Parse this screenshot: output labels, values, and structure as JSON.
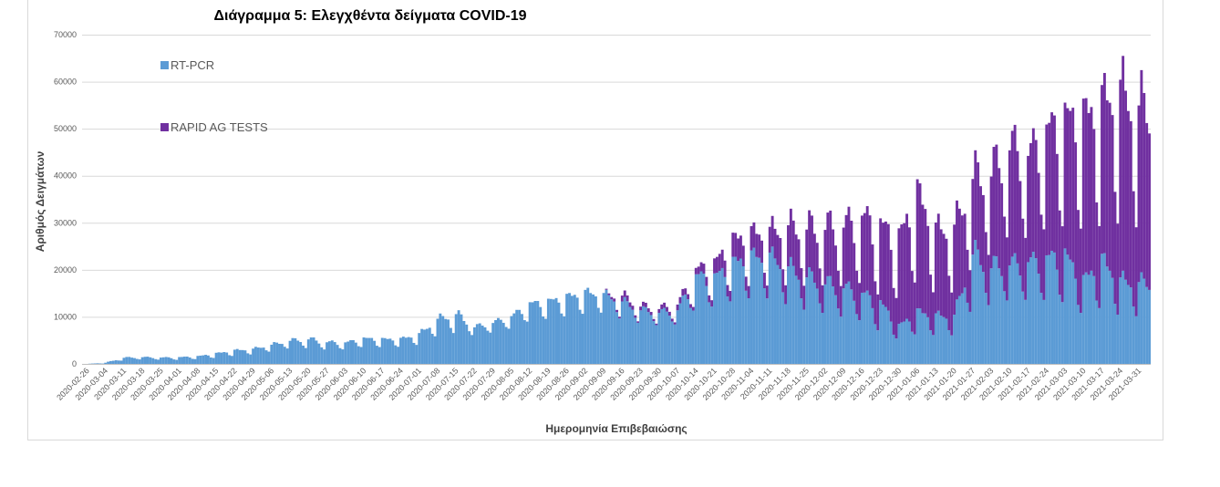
{
  "chart_data": {
    "type": "bar",
    "stacked": true,
    "title": "Διάγραμμα 5: Ελεγχθέντα δείγματα COVID-19",
    "xlabel": "Ημερομηνία Επιβεβαιώσης",
    "ylabel": "Αριθμός Δειγμάτων",
    "ylim": [
      0,
      70000
    ],
    "yticks": [
      0,
      10000,
      20000,
      30000,
      40000,
      50000,
      60000,
      70000
    ],
    "legend_position": "top-left, inside plot",
    "grid": true,
    "x_tick_labels": [
      "2020-02-26",
      "2020-03-04",
      "2020-03-11",
      "2020-03-18",
      "2020-03-25",
      "2020-04-01",
      "2020-04-08",
      "2020-04-15",
      "2020-04-22",
      "2020-04-29",
      "2020-05-06",
      "2020-05-13",
      "2020-05-20",
      "2020-05-27",
      "2020-06-03",
      "2020-06-10",
      "2020-06-17",
      "2020-06-24",
      "2020-07-01",
      "2020-07-08",
      "2020-07-15",
      "2020-07-22",
      "2020-07-29",
      "2020-08-05",
      "2020-08-12",
      "2020-08-19",
      "2020-08-26",
      "2020-09-02",
      "2020-09-09",
      "2020-09-16",
      "2020-09-23",
      "2020-09-30",
      "2020-10-07",
      "2020-10-14",
      "2020-10-21",
      "2020-10-28",
      "2020-11-04",
      "2020-11-11",
      "2020-11-18",
      "2020-11-25",
      "2020-12-02",
      "2020-12-09",
      "2020-12-16",
      "2020-12-23",
      "2020-12-30",
      "2021-01-06",
      "2021-01-13",
      "2021-01-20",
      "2021-01-27",
      "2021-02-03",
      "2021-02-10",
      "2021-02-17",
      "2021-02-24",
      "2021-03-03",
      "2021-03-10",
      "2021-03-17",
      "2021-03-24",
      "2021-03-31"
    ],
    "weekly_points": [
      "2020-02-26",
      "2020-03-04",
      "2020-03-11",
      "2020-03-18",
      "2020-03-25",
      "2020-04-01",
      "2020-04-08",
      "2020-04-15",
      "2020-04-22",
      "2020-04-29",
      "2020-05-06",
      "2020-05-13",
      "2020-05-20",
      "2020-05-27",
      "2020-06-03",
      "2020-06-10",
      "2020-06-17",
      "2020-06-24",
      "2020-07-01",
      "2020-07-08",
      "2020-07-15",
      "2020-07-22",
      "2020-07-29",
      "2020-08-05",
      "2020-08-12",
      "2020-08-19",
      "2020-08-26",
      "2020-09-02",
      "2020-09-09",
      "2020-09-16",
      "2020-09-23",
      "2020-09-30",
      "2020-10-07",
      "2020-10-14",
      "2020-10-21",
      "2020-10-28",
      "2020-11-04",
      "2020-11-11",
      "2020-11-18",
      "2020-11-25",
      "2020-12-02",
      "2020-12-09",
      "2020-12-16",
      "2020-12-23",
      "2020-12-30",
      "2021-01-06",
      "2021-01-13",
      "2021-01-20",
      "2021-01-27",
      "2021-02-03",
      "2021-02-10",
      "2021-02-17",
      "2021-02-24",
      "2021-03-03",
      "2021-03-10",
      "2021-03-17",
      "2021-03-24",
      "2021-03-31"
    ],
    "series": [
      {
        "name": "RT-PCR",
        "color": "#5b9bd5",
        "weekly_peak": [
          0,
          300,
          1500,
          1600,
          1500,
          1600,
          1800,
          2500,
          3200,
          3500,
          4500,
          5500,
          6000,
          5200,
          5000,
          6000,
          5800,
          5800,
          7000,
          10500,
          12000,
          8500,
          9500,
          11000,
          14000,
          14500,
          15500,
          16500,
          16000,
          14500,
          12500,
          12000,
          12500,
          21000,
          20500,
          24000,
          25500,
          25500,
          23000,
          21000,
          19500,
          18500,
          17000,
          15000,
          9000,
          12500,
          11500,
          11500,
          27000,
          23500,
          24000,
          24500,
          25500,
          26500,
          20000,
          25000,
          20000,
          19500
        ],
        "weekly_low": [
          0,
          0,
          500,
          700,
          600,
          500,
          700,
          800,
          1200,
          1500,
          2000,
          2500,
          2200,
          2000,
          2200,
          2600,
          2600,
          2800,
          3000,
          4500,
          4500,
          5000,
          5500,
          6000,
          7000,
          7500,
          8000,
          8500,
          9000,
          7500,
          7000,
          6500,
          6500,
          7500,
          8500,
          9000,
          9500,
          9500,
          8500,
          7500,
          7000,
          6000,
          5500,
          3000,
          3500,
          4000,
          4000,
          4000,
          6000,
          8000,
          9000,
          8500,
          8000,
          7000,
          6500,
          7000,
          6500,
          6500
        ]
      },
      {
        "name": "RAPID AG TESTS",
        "color": "#7030a0",
        "weekly_peak": [
          0,
          0,
          0,
          0,
          0,
          0,
          0,
          0,
          0,
          0,
          0,
          0,
          0,
          0,
          0,
          0,
          0,
          0,
          0,
          0,
          0,
          0,
          0,
          0,
          0,
          0,
          0,
          0,
          0,
          1500,
          1000,
          1000,
          1500,
          1500,
          3500,
          5500,
          5500,
          6000,
          10000,
          12000,
          14000,
          15500,
          19000,
          19500,
          22000,
          29500,
          21000,
          21500,
          18500,
          23000,
          29000,
          26000,
          31000,
          33500,
          40000,
          38500,
          46500,
          43000
        ],
        "weekly_low": [
          0,
          0,
          0,
          0,
          0,
          0,
          0,
          0,
          0,
          0,
          0,
          0,
          0,
          0,
          0,
          0,
          0,
          0,
          0,
          0,
          0,
          0,
          0,
          0,
          0,
          0,
          0,
          0,
          0,
          0,
          0,
          0,
          0,
          500,
          500,
          1000,
          1500,
          1500,
          2000,
          2500,
          2500,
          2500,
          3000,
          2000,
          3000,
          4000,
          4000,
          4500,
          5000,
          6000,
          7000,
          7000,
          8000,
          8500,
          9000,
          9000,
          9500,
          9500
        ]
      }
    ]
  }
}
